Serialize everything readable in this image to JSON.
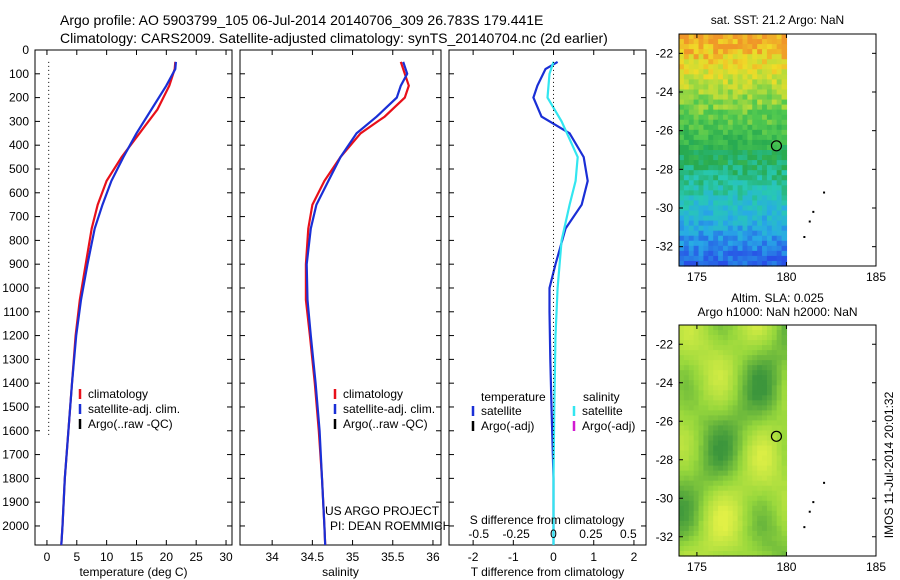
{
  "header": {
    "line1": "Argo profile: AO 5903799_105 06-Jul-2014 20140706_309 26.783S 179.441E",
    "line2": "Climatology: CARS2009. Satellite-adjusted climatology: synTS_20140704.nc (2d earlier)"
  },
  "side_note": "IMOS 11-Jul-2014 20:01:32",
  "colors": {
    "clim": "#e8101a",
    "sat": "#1a2fd6",
    "argo": "#000000",
    "sat_s": "#33e6f0",
    "argo_s": "#d21ad2"
  },
  "chart_data": [
    {
      "type": "line",
      "title": "",
      "xlabel": "temperature (deg C)",
      "ylabel": "",
      "xlim": [
        -2,
        31
      ],
      "ylim": [
        2080,
        0
      ],
      "xticks": [
        0,
        5,
        10,
        15,
        20,
        25,
        30
      ],
      "yticks": [
        0,
        100,
        200,
        300,
        400,
        500,
        600,
        700,
        800,
        900,
        1000,
        1100,
        1200,
        1300,
        1400,
        1500,
        1600,
        1700,
        1800,
        1900,
        2000
      ],
      "legend": [
        "climatology",
        "satellite-adj. clim.",
        "Argo(..raw -QC)"
      ],
      "legend_position": "lower-left",
      "series": [
        {
          "name": "climatology",
          "color": "#e8101a",
          "points": [
            [
              21.5,
              50
            ],
            [
              21.4,
              80
            ],
            [
              20.5,
              150
            ],
            [
              18.5,
              250
            ],
            [
              15.5,
              350
            ],
            [
              12.5,
              450
            ],
            [
              10,
              550
            ],
            [
              8.5,
              650
            ],
            [
              7.5,
              750
            ],
            [
              6.5,
              900
            ],
            [
              5.5,
              1050
            ],
            [
              4.8,
              1200
            ],
            [
              4.2,
              1400
            ],
            [
              3.6,
              1600
            ],
            [
              3,
              1800
            ],
            [
              2.6,
              2000
            ],
            [
              2.4,
              2080
            ]
          ]
        },
        {
          "name": "satellite-adj. clim.",
          "color": "#1a2fd6",
          "points": [
            [
              21.6,
              50
            ],
            [
              21.5,
              80
            ],
            [
              20,
              150
            ],
            [
              17.5,
              250
            ],
            [
              15,
              350
            ],
            [
              12.8,
              450
            ],
            [
              10.8,
              550
            ],
            [
              9.3,
              650
            ],
            [
              8,
              750
            ],
            [
              6.8,
              900
            ],
            [
              5.7,
              1050
            ],
            [
              4.9,
              1200
            ],
            [
              4.2,
              1400
            ],
            [
              3.6,
              1600
            ],
            [
              3,
              1800
            ],
            [
              2.6,
              2000
            ],
            [
              2.4,
              2080
            ]
          ]
        },
        {
          "name": "Argo(..raw -QC)",
          "color": "#000000",
          "dotted": true,
          "points": [
            [
              0.3,
              50
            ],
            [
              0.3,
              1620
            ]
          ]
        }
      ]
    },
    {
      "type": "line",
      "title": "",
      "xlabel": "salinity",
      "ylabel": "",
      "xlim": [
        33.6,
        36.1
      ],
      "ylim": [
        2080,
        0
      ],
      "xticks": [
        34,
        34.5,
        35,
        35.5,
        36
      ],
      "legend": [
        "climatology",
        "satellite-adj. clim.",
        "Argo(..raw -QC)"
      ],
      "legend_position": "lower-right",
      "annotations": [
        "US ARGO PROJECT",
        "PI: DEAN ROEMMICH"
      ],
      "series": [
        {
          "name": "climatology",
          "color": "#e8101a",
          "points": [
            [
              35.6,
              50
            ],
            [
              35.65,
              100
            ],
            [
              35.7,
              150
            ],
            [
              35.65,
              200
            ],
            [
              35.4,
              280
            ],
            [
              35.1,
              350
            ],
            [
              34.85,
              450
            ],
            [
              34.65,
              550
            ],
            [
              34.5,
              650
            ],
            [
              34.45,
              750
            ],
            [
              34.42,
              900
            ],
            [
              34.42,
              1050
            ],
            [
              34.47,
              1200
            ],
            [
              34.53,
              1400
            ],
            [
              34.58,
              1600
            ],
            [
              34.62,
              1800
            ],
            [
              34.65,
              2000
            ],
            [
              34.66,
              2080
            ]
          ]
        },
        {
          "name": "satellite-adj. clim.",
          "color": "#1a2fd6",
          "points": [
            [
              35.63,
              50
            ],
            [
              35.68,
              100
            ],
            [
              35.6,
              150
            ],
            [
              35.55,
              200
            ],
            [
              35.3,
              280
            ],
            [
              35.05,
              350
            ],
            [
              34.85,
              450
            ],
            [
              34.7,
              550
            ],
            [
              34.55,
              650
            ],
            [
              34.48,
              750
            ],
            [
              34.43,
              900
            ],
            [
              34.44,
              1050
            ],
            [
              34.48,
              1200
            ],
            [
              34.54,
              1400
            ],
            [
              34.59,
              1600
            ],
            [
              34.62,
              1800
            ],
            [
              34.65,
              2000
            ],
            [
              34.66,
              2080
            ]
          ]
        }
      ]
    },
    {
      "type": "line",
      "title": "",
      "xlabel": "T difference from climatology",
      "ylabel": "",
      "xlim": [
        -2.6,
        2.3
      ],
      "ylim": [
        2080,
        0
      ],
      "xticks": [
        -2,
        -1,
        0,
        1,
        2
      ],
      "s_axis_label": "S difference from climatology",
      "s_ticks": [
        -0.5,
        -0.25,
        0,
        0.25,
        0.5
      ],
      "legend_temperature": {
        "title": "temperature",
        "items": [
          "satellite",
          "Argo(-adj)"
        ]
      },
      "legend_salinity": {
        "title": "salinity",
        "items": [
          "satellite",
          "Argo(-adj)"
        ]
      },
      "series": [
        {
          "name": "temperature satellite",
          "color": "#1a2fd6",
          "points": [
            [
              0.1,
              50
            ],
            [
              -0.2,
              80
            ],
            [
              -0.4,
              150
            ],
            [
              -0.5,
              200
            ],
            [
              -0.3,
              280
            ],
            [
              0.4,
              350
            ],
            [
              0.75,
              450
            ],
            [
              0.85,
              550
            ],
            [
              0.7,
              650
            ],
            [
              0.3,
              750
            ],
            [
              0.05,
              900
            ],
            [
              -0.1,
              1000
            ],
            [
              -0.1,
              1100
            ],
            [
              -0.08,
              1300
            ],
            [
              -0.05,
              1500
            ],
            [
              0,
              1800
            ],
            [
              0,
              2000
            ],
            [
              0,
              2080
            ]
          ]
        },
        {
          "name": "salinity satellite",
          "color": "#33e6f0",
          "points": [
            [
              0,
              50
            ],
            [
              -0.1,
              100
            ],
            [
              -0.15,
              200
            ],
            [
              0.2,
              300
            ],
            [
              0.6,
              450
            ],
            [
              0.55,
              550
            ],
            [
              0.4,
              650
            ],
            [
              0.2,
              800
            ],
            [
              0.1,
              1000
            ],
            [
              0.05,
              1200
            ],
            [
              0.02,
              1500
            ],
            [
              0,
              1800
            ],
            [
              0,
              2080
            ]
          ]
        },
        {
          "name": "zero line",
          "color": "#000000",
          "dotted": true,
          "points": [
            [
              0,
              50
            ],
            [
              0,
              1720
            ]
          ]
        }
      ]
    },
    {
      "type": "heatmap",
      "title": "sat. SST: 21.2  Argo: NaN",
      "xlim": [
        174,
        185
      ],
      "ylim": [
        -33,
        -21
      ],
      "xticks": [
        175,
        180,
        185
      ],
      "yticks": [
        -22,
        -24,
        -26,
        -28,
        -30,
        -32
      ],
      "data_extent_lon": [
        174,
        180
      ],
      "float_position": [
        179.441,
        -26.783
      ],
      "island_points": [
        [
          182.1,
          -29.2
        ],
        [
          181.5,
          -30.2
        ],
        [
          181.3,
          -30.7
        ],
        [
          181,
          -31.5
        ]
      ]
    },
    {
      "type": "heatmap",
      "title": "Altim. SLA: 0.025",
      "subtitle": "Argo h1000: NaN h2000: NaN",
      "xlim": [
        174,
        185
      ],
      "ylim": [
        -33,
        -21
      ],
      "xticks": [
        175,
        180,
        185
      ],
      "yticks": [
        -22,
        -24,
        -26,
        -28,
        -30,
        -32
      ],
      "data_extent_lon": [
        174,
        180
      ],
      "float_position": [
        179.441,
        -26.783
      ],
      "island_points": [
        [
          182.1,
          -29.2
        ],
        [
          181.5,
          -30.2
        ],
        [
          181.3,
          -30.7
        ],
        [
          181,
          -31.5
        ]
      ]
    }
  ]
}
